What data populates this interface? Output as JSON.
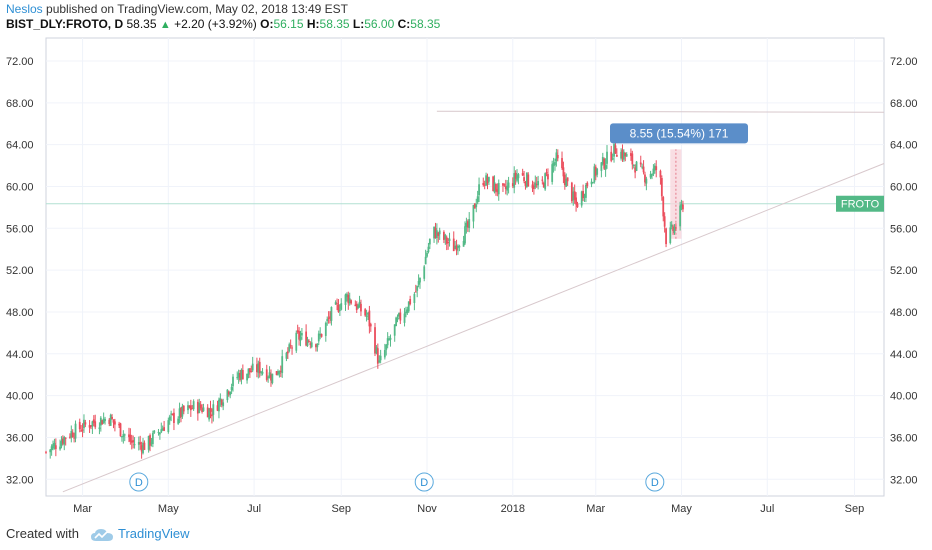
{
  "header": {
    "author": "Neslos",
    "published_text": "published on TradingView.com, May 02, 2018 13:49 EST",
    "symbol": "BIST_DLY:FROTO, D",
    "last": "58.35",
    "change": "+2.20 (+3.92%)",
    "o_label": "O:",
    "o_value": "56.15",
    "h_label": "H:",
    "h_value": "58.35",
    "l_label": "L:",
    "l_value": "56.00",
    "c_label": "C:",
    "c_value": "58.35"
  },
  "footer": {
    "created_with": "Created with",
    "brand": "TradingView"
  },
  "colors": {
    "up": "#53b987",
    "down": "#eb4d5c",
    "grid": "#f0f3fa",
    "trend": "#d8c8cc",
    "price_line": "#b2e0d2",
    "label_bg": "#53b987",
    "measure_bg": "#5b8ec9",
    "measure_zone": "#f8d6dc"
  },
  "chart_data": {
    "type": "candlestick",
    "symbol": "FROTO",
    "price_label": "FROTO",
    "ylim": [
      30.4,
      74.2
    ],
    "y_ticks": [
      "72.00",
      "68.00",
      "64.00",
      "60.00",
      "56.00",
      "52.00",
      "48.00",
      "44.00",
      "40.00",
      "36.00",
      "32.00"
    ],
    "y_tick_values": [
      72,
      68,
      64,
      60,
      56,
      52,
      48,
      44,
      40,
      36,
      32
    ],
    "x_ticks": [
      "Mar",
      "May",
      "Jul",
      "Sep",
      "Nov",
      "2018",
      "Mar",
      "May",
      "Jul",
      "Sep"
    ],
    "x_tick_dates": [
      "2017-03-01",
      "2017-05-01",
      "2017-07-01",
      "2017-09-01",
      "2017-11-01",
      "2018-01-01",
      "2018-03-01",
      "2018-05-01",
      "2018-07-01",
      "2018-09-01"
    ],
    "x_range": [
      "2017-02-03",
      "2018-09-22"
    ],
    "key_points": [
      [
        "2017-02-03",
        34.6
      ],
      [
        "2017-02-20",
        36.4
      ],
      [
        "2017-03-05",
        37.3
      ],
      [
        "2017-03-20",
        37.9
      ],
      [
        "2017-04-05",
        35.5
      ],
      [
        "2017-04-15",
        35.2
      ],
      [
        "2017-05-01",
        37.6
      ],
      [
        "2017-05-20",
        39.0
      ],
      [
        "2017-06-01",
        38.5
      ],
      [
        "2017-06-20",
        42.0
      ],
      [
        "2017-07-05",
        42.6
      ],
      [
        "2017-07-15",
        41.8
      ],
      [
        "2017-08-01",
        45.6
      ],
      [
        "2017-08-15",
        45.2
      ],
      [
        "2017-08-25",
        47.8
      ],
      [
        "2017-09-05",
        49.5
      ],
      [
        "2017-09-20",
        47.5
      ],
      [
        "2017-09-28",
        43.0
      ],
      [
        "2017-10-10",
        46.8
      ],
      [
        "2017-10-25",
        50.2
      ],
      [
        "2017-11-05",
        55.8
      ],
      [
        "2017-11-20",
        54.2
      ],
      [
        "2017-12-01",
        56.2
      ],
      [
        "2017-12-10",
        60.8
      ],
      [
        "2017-12-25",
        59.4
      ],
      [
        "2018-01-05",
        61.2
      ],
      [
        "2018-01-20",
        59.8
      ],
      [
        "2018-02-01",
        62.6
      ],
      [
        "2018-02-15",
        58.2
      ],
      [
        "2018-02-25",
        60.8
      ],
      [
        "2018-03-05",
        62.0
      ],
      [
        "2018-03-15",
        63.6
      ],
      [
        "2018-03-25",
        62.6
      ],
      [
        "2018-04-05",
        61.0
      ],
      [
        "2018-04-15",
        61.8
      ],
      [
        "2018-04-20",
        55.0
      ],
      [
        "2018-04-27",
        56.2
      ],
      [
        "2018-05-02",
        58.35
      ]
    ],
    "last_price": 58.35,
    "trendline": [
      [
        "2017-02-15",
        30.8
      ],
      [
        "2018-09-22",
        62.2
      ]
    ],
    "resistance_line": [
      [
        "2017-11-08",
        67.2
      ],
      [
        "2018-09-22",
        67.1
      ]
    ],
    "measure": {
      "label": "8.55 (15.54%) 171",
      "from_date": "2018-04-23",
      "to_date": "2018-05-01",
      "low": 55.0,
      "high": 63.55
    },
    "dividend_markers": [
      {
        "date": "2017-04-10",
        "label": "D"
      },
      {
        "date": "2017-10-30",
        "label": "D"
      },
      {
        "date": "2018-04-12",
        "label": "D"
      }
    ]
  }
}
